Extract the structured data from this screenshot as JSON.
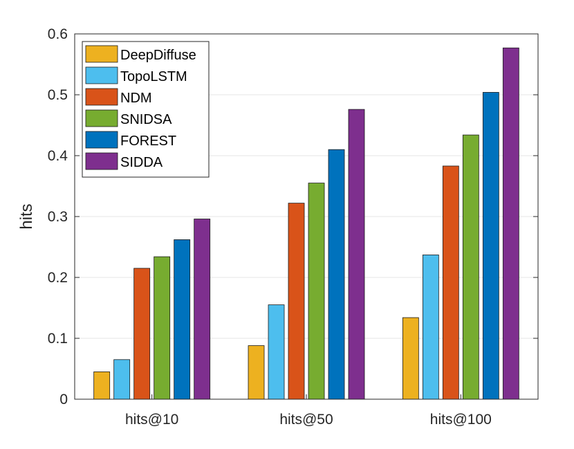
{
  "chart_data": {
    "type": "bar",
    "title": "",
    "xlabel": "",
    "ylabel": "hits",
    "ylim": [
      0,
      0.6
    ],
    "yticks": [
      "0",
      "0.1",
      "0.2",
      "0.3",
      "0.4",
      "0.5",
      "0.6"
    ],
    "grid": true,
    "legend_position": "top-left",
    "categories": [
      "hits@10",
      "hits@50",
      "hits@100"
    ],
    "series": [
      {
        "name": "DeepDiffuse",
        "color": "#EDB120",
        "values": [
          0.045,
          0.088,
          0.134
        ]
      },
      {
        "name": "TopoLSTM",
        "color": "#4DBEEE",
        "values": [
          0.065,
          0.155,
          0.237
        ]
      },
      {
        "name": "NDM",
        "color": "#D95319",
        "values": [
          0.215,
          0.322,
          0.383
        ]
      },
      {
        "name": "SNIDSA",
        "color": "#77AC30",
        "values": [
          0.234,
          0.355,
          0.434
        ]
      },
      {
        "name": "FOREST",
        "color": "#0072BD",
        "values": [
          0.262,
          0.41,
          0.504
        ]
      },
      {
        "name": "SIDDA",
        "color": "#7E2F8E",
        "values": [
          0.296,
          0.476,
          0.577
        ]
      }
    ]
  }
}
